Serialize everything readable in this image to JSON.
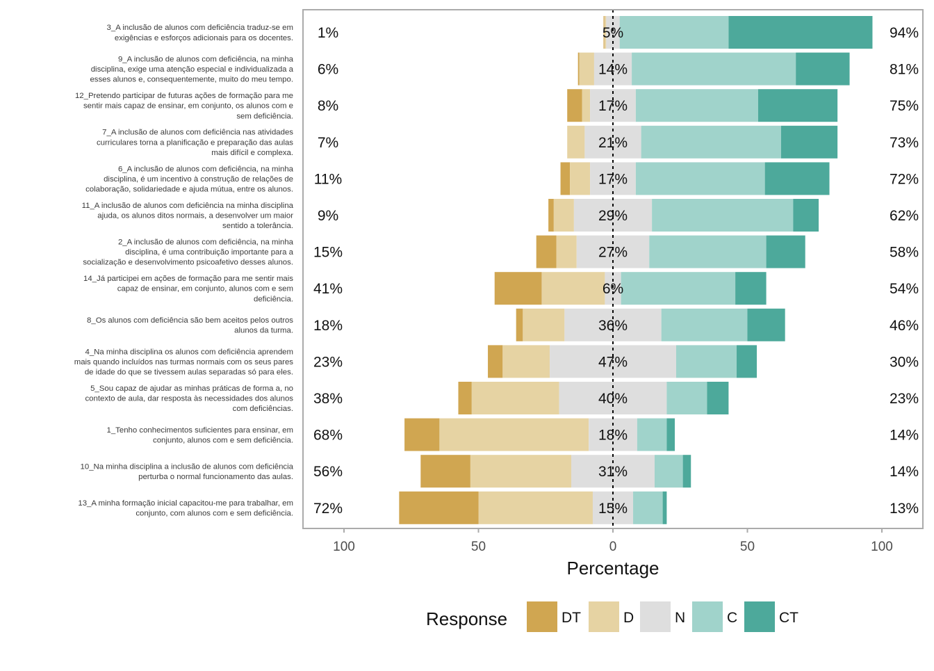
{
  "chart_data": {
    "type": "bar",
    "subtype": "diverging-stacked-likert",
    "xlabel": "Percentage",
    "x_ticks": [
      "100",
      "50",
      "0",
      "50",
      "100"
    ],
    "xlim": [
      -100,
      100
    ],
    "grid": true,
    "legend_position": "bottom",
    "legend": {
      "title": "Response",
      "entries": [
        {
          "label": "DT",
          "color": "#D0A651"
        },
        {
          "label": "D",
          "color": "#E6D3A3"
        },
        {
          "label": "N",
          "color": "#DEDEDE"
        },
        {
          "label": "C",
          "color": "#A0D3CB"
        },
        {
          "label": "CT",
          "color": "#4DA99B"
        }
      ]
    },
    "items": [
      {
        "label": "3_A inclusão de alunos com deficiência traduz-se em exigências e esforços adicionais para os docentes.",
        "label_lines": [
          "3_A inclusão de alunos com deficiência traduz-se em",
          "exigências e esforços adicionais para os docentes."
        ],
        "values": [
          0.3,
          0.7,
          5,
          40.5,
          53.5
        ],
        "left_label": "1%",
        "center_label": "5%",
        "right_label": "94%"
      },
      {
        "label": "9_A inclusão de alunos com deficiência, na minha disciplina, exige uma atenção especial e individualizada a esses alunos e, consequentemente, muito do meu tempo.",
        "label_lines": [
          "9_A inclusão de alunos com deficiência, na minha",
          "disciplina, exige uma atenção especial e individualizada a",
          "esses alunos e, consequentemente, muito do meu tempo."
        ],
        "values": [
          0.5,
          5.5,
          14,
          61,
          20
        ],
        "left_label": "6%",
        "center_label": "14%",
        "right_label": "81%"
      },
      {
        "label": "12_Pretendo participar de futuras ações de formação para me sentir mais capaz de ensinar, em conjunto, os alunos com e sem deficiência.",
        "label_lines": [
          "12_Pretendo participar de futuras ações de formação para me",
          "sentir mais capaz de ensinar, em conjunto, os alunos com e",
          "sem deficiência."
        ],
        "values": [
          5.5,
          3,
          17,
          45.5,
          29.5
        ],
        "left_label": "8%",
        "center_label": "17%",
        "right_label": "75%"
      },
      {
        "label": "7_A inclusão de alunos com deficiência nas atividades curriculares torna a planificação e preparação das aulas mais difícil e complexa.",
        "label_lines": [
          "7_A inclusão de alunos com deficiência nas atividades",
          "curriculares torna a planificação e preparação das aulas",
          "mais difícil e complexa."
        ],
        "values": [
          0,
          6.5,
          21,
          52,
          21
        ],
        "left_label": "7%",
        "center_label": "21%",
        "right_label": "73%"
      },
      {
        "label": "6_A inclusão de alunos com deficiência, na minha disciplina, é um incentivo à construção de relações de colaboração, solidariedade e ajuda mútua, entre os alunos.",
        "label_lines": [
          "6_A inclusão de alunos com deficiência, na minha",
          "disciplina, é um incentivo à construção de relações de",
          "colaboração, solidariedade e ajuda mútua, entre os alunos."
        ],
        "values": [
          3.5,
          7.5,
          17,
          48,
          24
        ],
        "left_label": "11%",
        "center_label": "17%",
        "right_label": "72%"
      },
      {
        "label": "11_A inclusão de alunos com deficiência na minha disciplina ajuda, os alunos ditos normais, a desenvolver um maior sentido a tolerância.",
        "label_lines": [
          "11_A inclusão de alunos com deficiência na minha disciplina",
          "ajuda, os alunos ditos normais, a desenvolver um maior",
          "sentido a tolerância."
        ],
        "values": [
          2,
          7.5,
          29,
          52.5,
          9.5
        ],
        "left_label": "9%",
        "center_label": "29%",
        "right_label": "62%"
      },
      {
        "label": "2_A inclusão de alunos com deficiência, na minha disciplina, é uma contribuição importante para a socialização e desenvolvimento psicoafetivo desses alunos.",
        "label_lines": [
          "2_A inclusão de alunos com deficiência, na minha",
          "disciplina, é uma contribuição importante para a",
          "socialização e desenvolvimento psicoafetivo desses alunos."
        ],
        "values": [
          7.5,
          7.5,
          27,
          43.5,
          14.5
        ],
        "left_label": "15%",
        "center_label": "27%",
        "right_label": "58%"
      },
      {
        "label": "14_Já participei em ações de formação para me sentir mais capaz de ensinar, em conjunto, alunos com e sem deficiência.",
        "label_lines": [
          "14_Já participei em ações de formação para me sentir mais",
          "capaz de ensinar, em conjunto, alunos com e sem",
          "deficiência."
        ],
        "values": [
          17.5,
          23.5,
          6,
          42.5,
          11.5
        ],
        "left_label": "41%",
        "center_label": "6%",
        "right_label": "54%"
      },
      {
        "label": "8_Os alunos com deficiência são bem aceitos pelos outros alunos da turma.",
        "label_lines": [
          "8_Os alunos com deficiência são bem aceitos pelos outros",
          "alunos da turma."
        ],
        "values": [
          2.5,
          15.5,
          36,
          32,
          14
        ],
        "left_label": "18%",
        "center_label": "36%",
        "right_label": "46%"
      },
      {
        "label": "4_Na minha disciplina os alunos com deficiência aprendem mais quando incluídos nas turmas normais com os seus pares de idade do que se tivessem aulas separadas só para eles.",
        "label_lines": [
          "4_Na minha disciplina os alunos com deficiência aprendem",
          "mais quando incluídos nas turmas normais com os seus pares",
          "de idade do que se tivessem aulas separadas só para eles."
        ],
        "values": [
          5.5,
          17.5,
          47,
          22.5,
          7.5
        ],
        "left_label": "23%",
        "center_label": "47%",
        "right_label": "30%"
      },
      {
        "label": "5_Sou capaz de ajudar as minhas práticas de forma a, no contexto de aula, dar resposta às necessidades dos alunos com deficiências.",
        "label_lines": [
          "5_Sou capaz de ajudar as minhas práticas de forma a, no",
          "contexto de aula, dar resposta às necessidades dos alunos",
          "com deficiências."
        ],
        "values": [
          5,
          32.5,
          40,
          15,
          8
        ],
        "left_label": "38%",
        "center_label": "40%",
        "right_label": "23%"
      },
      {
        "label": "1_Tenho conhecimentos suficientes para ensinar, em conjunto, alunos com e sem deficiência.",
        "label_lines": [
          "1_Tenho conhecimentos suficientes para ensinar, em",
          "conjunto, alunos com e sem deficiência."
        ],
        "values": [
          13,
          55.5,
          18,
          11,
          3
        ],
        "left_label": "68%",
        "center_label": "18%",
        "right_label": "14%"
      },
      {
        "label": "10_Na minha disciplina a inclusão de alunos com deficiência perturba o normal funcionamento das aulas.",
        "label_lines": [
          "10_Na minha disciplina a inclusão de alunos com deficiência",
          "perturba o normal funcionamento das aulas."
        ],
        "values": [
          18.5,
          37.5,
          31,
          10.5,
          3
        ],
        "left_label": "56%",
        "center_label": "31%",
        "right_label": "14%"
      },
      {
        "label": "13_A minha formação inicial capacitou-me para trabalhar, em conjunto, com alunos com e sem deficiência.",
        "label_lines": [
          "13_A minha formação inicial capacitou-me para trabalhar, em",
          "conjunto, com alunos com e sem deficiência."
        ],
        "values": [
          29.5,
          42.5,
          15,
          11,
          1.5
        ],
        "left_label": "72%",
        "center_label": "15%",
        "right_label": "13%"
      }
    ]
  }
}
